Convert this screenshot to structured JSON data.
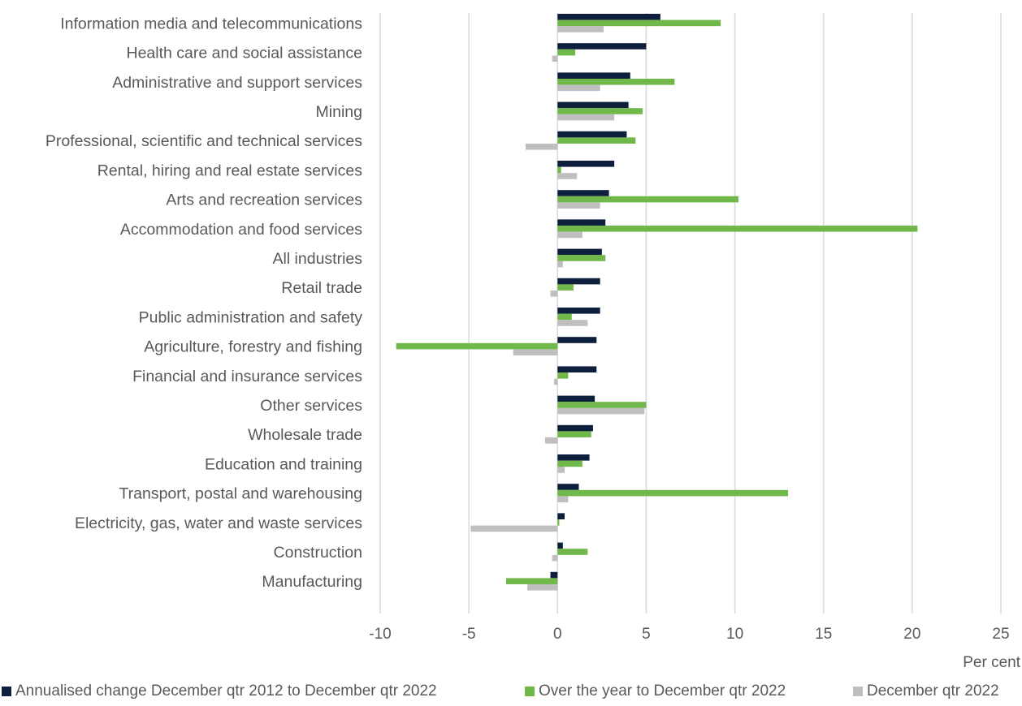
{
  "chart_data": {
    "type": "bar",
    "orientation": "horizontal",
    "xlabel": "Per cent",
    "xlim": [
      -10,
      25
    ],
    "xticks": [
      -10,
      -5,
      0,
      5,
      10,
      15,
      20,
      25
    ],
    "grid": true,
    "legend_position": "bottom",
    "categories": [
      "Information media and telecommunications",
      "Health care and social assistance",
      "Administrative and support services",
      "Mining",
      "Professional, scientific and technical services",
      "Rental, hiring and real estate services",
      "Arts and recreation services",
      "Accommodation and food services",
      "All industries",
      "Retail trade",
      "Public administration and safety",
      "Agriculture, forestry and fishing",
      "Financial and insurance services",
      "Other services",
      "Wholesale trade",
      "Education and training",
      "Transport, postal and warehousing",
      "Electricity, gas, water and waste services",
      "Construction",
      "Manufacturing"
    ],
    "series": [
      {
        "name": "Annualised change December qtr 2012 to December qtr 2022",
        "color": "#0d1f3c",
        "values": [
          5.8,
          5.0,
          4.1,
          4.0,
          3.9,
          3.2,
          2.9,
          2.7,
          2.5,
          2.4,
          2.4,
          2.2,
          2.2,
          2.1,
          2.0,
          1.8,
          1.2,
          0.4,
          0.3,
          -0.4
        ]
      },
      {
        "name": "Over the year to December qtr 2022",
        "color": "#70b84a",
        "values": [
          9.2,
          1.0,
          6.6,
          4.8,
          4.4,
          0.2,
          10.2,
          20.3,
          2.7,
          0.9,
          0.8,
          -9.1,
          0.6,
          5.0,
          1.9,
          1.4,
          13.0,
          0.1,
          1.7,
          -2.9
        ]
      },
      {
        "name": "December qtr 2022",
        "color": "#bfbfbf",
        "values": [
          2.6,
          -0.3,
          2.4,
          3.2,
          -1.8,
          1.1,
          2.4,
          1.4,
          0.3,
          -0.4,
          1.7,
          -2.5,
          -0.2,
          4.9,
          -0.7,
          0.4,
          0.6,
          -4.9,
          -0.3,
          -1.7
        ]
      }
    ]
  }
}
